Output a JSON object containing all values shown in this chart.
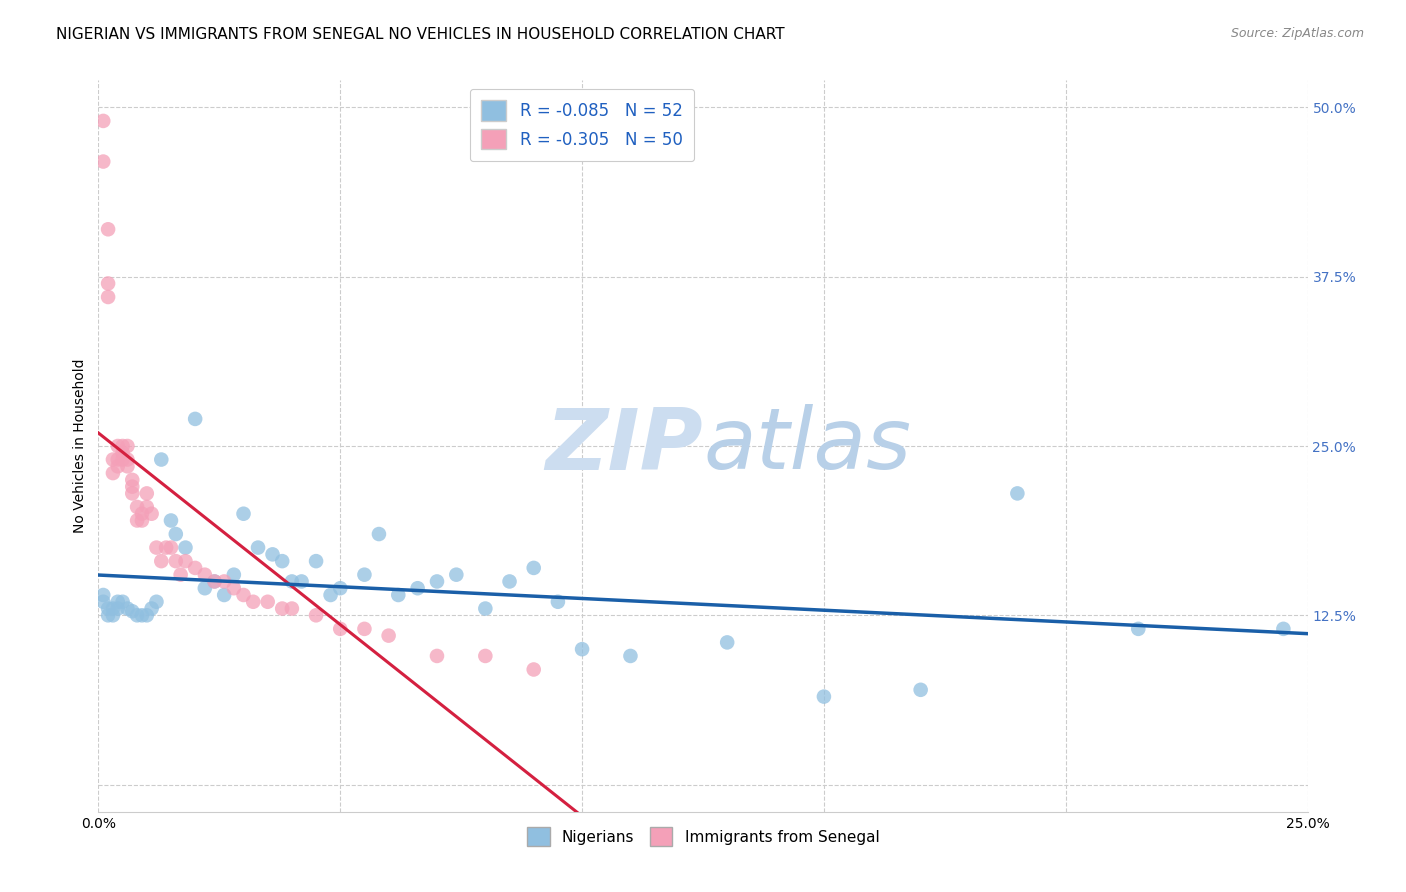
{
  "title": "NIGERIAN VS IMMIGRANTS FROM SENEGAL NO VEHICLES IN HOUSEHOLD CORRELATION CHART",
  "source": "Source: ZipAtlas.com",
  "ylabel": "No Vehicles in Household",
  "ytick_values": [
    0.0,
    0.125,
    0.25,
    0.375,
    0.5
  ],
  "xlim": [
    0.0,
    0.25
  ],
  "ylim": [
    -0.02,
    0.52
  ],
  "legend_title_blue": "Nigerians",
  "legend_title_pink": "Immigrants from Senegal",
  "R_blue": -0.085,
  "R_pink": -0.305,
  "N_blue": 52,
  "N_pink": 50,
  "blue_color": "#90bfe0",
  "pink_color": "#f4a0b8",
  "blue_line_color": "#1a5fa8",
  "pink_line_color": "#d42040",
  "background_color": "#ffffff",
  "watermark_color": "#ccddf0",
  "grid_color": "#cccccc",
  "title_fontsize": 11,
  "axis_label_fontsize": 10,
  "tick_fontsize": 10,
  "blue_x": [
    0.001,
    0.001,
    0.002,
    0.002,
    0.003,
    0.003,
    0.004,
    0.004,
    0.005,
    0.006,
    0.007,
    0.008,
    0.009,
    0.01,
    0.011,
    0.012,
    0.013,
    0.015,
    0.016,
    0.018,
    0.02,
    0.022,
    0.024,
    0.026,
    0.028,
    0.03,
    0.033,
    0.036,
    0.038,
    0.04,
    0.042,
    0.045,
    0.048,
    0.05,
    0.055,
    0.058,
    0.062,
    0.066,
    0.07,
    0.074,
    0.08,
    0.085,
    0.09,
    0.095,
    0.1,
    0.11,
    0.13,
    0.15,
    0.17,
    0.19,
    0.215,
    0.245
  ],
  "blue_y": [
    0.14,
    0.135,
    0.13,
    0.125,
    0.13,
    0.125,
    0.135,
    0.13,
    0.135,
    0.13,
    0.128,
    0.125,
    0.125,
    0.125,
    0.13,
    0.135,
    0.24,
    0.195,
    0.185,
    0.175,
    0.27,
    0.145,
    0.15,
    0.14,
    0.155,
    0.2,
    0.175,
    0.17,
    0.165,
    0.15,
    0.15,
    0.165,
    0.14,
    0.145,
    0.155,
    0.185,
    0.14,
    0.145,
    0.15,
    0.155,
    0.13,
    0.15,
    0.16,
    0.135,
    0.1,
    0.095,
    0.105,
    0.065,
    0.07,
    0.215,
    0.115,
    0.115
  ],
  "pink_x": [
    0.001,
    0.001,
    0.002,
    0.002,
    0.002,
    0.003,
    0.003,
    0.004,
    0.004,
    0.004,
    0.005,
    0.005,
    0.005,
    0.006,
    0.006,
    0.006,
    0.007,
    0.007,
    0.007,
    0.008,
    0.008,
    0.009,
    0.009,
    0.01,
    0.01,
    0.011,
    0.012,
    0.013,
    0.014,
    0.015,
    0.016,
    0.017,
    0.018,
    0.02,
    0.022,
    0.024,
    0.026,
    0.028,
    0.03,
    0.032,
    0.035,
    0.038,
    0.04,
    0.045,
    0.05,
    0.055,
    0.06,
    0.07,
    0.08,
    0.09
  ],
  "pink_y": [
    0.49,
    0.46,
    0.41,
    0.37,
    0.36,
    0.24,
    0.23,
    0.25,
    0.24,
    0.235,
    0.25,
    0.245,
    0.24,
    0.25,
    0.24,
    0.235,
    0.215,
    0.22,
    0.225,
    0.195,
    0.205,
    0.2,
    0.195,
    0.215,
    0.205,
    0.2,
    0.175,
    0.165,
    0.175,
    0.175,
    0.165,
    0.155,
    0.165,
    0.16,
    0.155,
    0.15,
    0.15,
    0.145,
    0.14,
    0.135,
    0.135,
    0.13,
    0.13,
    0.125,
    0.115,
    0.115,
    0.11,
    0.095,
    0.095,
    0.085
  ]
}
